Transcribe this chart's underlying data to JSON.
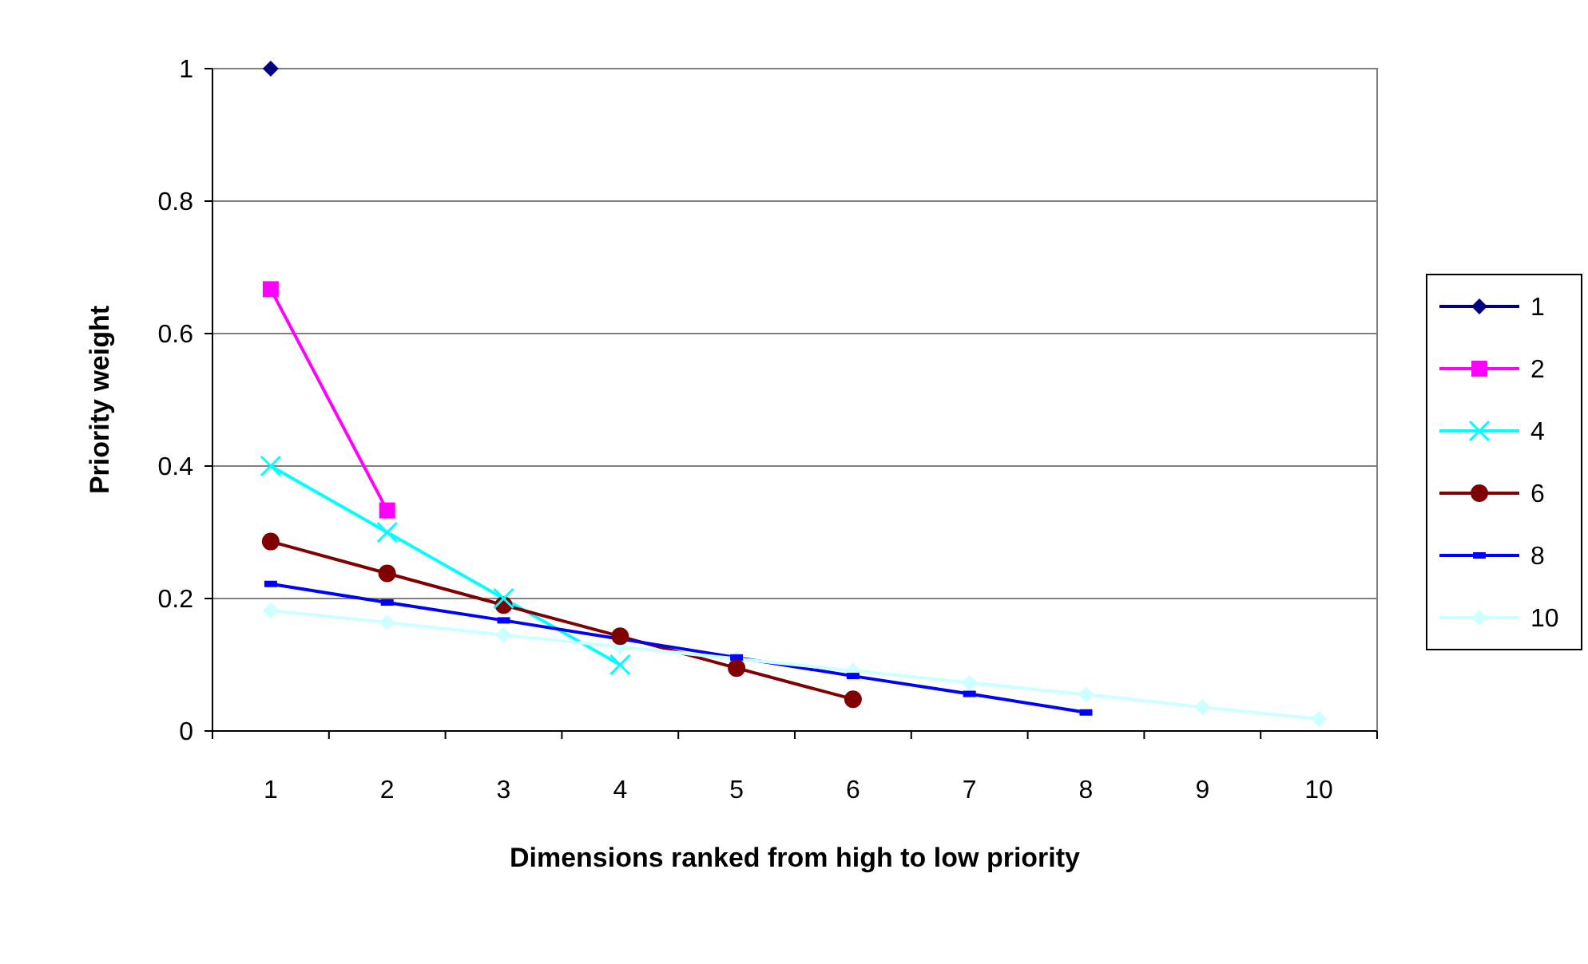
{
  "chart_data": {
    "type": "line",
    "xlabel": "Dimensions ranked from high to low priority",
    "ylabel": "Priority weight",
    "categories": [
      "1",
      "2",
      "3",
      "4",
      "5",
      "6",
      "7",
      "8",
      "9",
      "10"
    ],
    "ylim": [
      0,
      1
    ],
    "yticks": [
      0,
      0.2,
      0.4,
      0.6,
      0.8,
      1
    ],
    "grid": "y",
    "legend": "right",
    "series": [
      {
        "name": "1",
        "color": "#000080",
        "marker": "diamond",
        "values": [
          1,
          null,
          null,
          null,
          null,
          null,
          null,
          null,
          null,
          null
        ]
      },
      {
        "name": "2",
        "color": "#ff00ff",
        "marker": "square",
        "values": [
          0.667,
          0.333,
          null,
          null,
          null,
          null,
          null,
          null,
          null,
          null
        ]
      },
      {
        "name": "4",
        "color": "#00ffff",
        "marker": "cross",
        "values": [
          0.4,
          0.3,
          0.2,
          0.1,
          null,
          null,
          null,
          null,
          null,
          null
        ]
      },
      {
        "name": "6",
        "color": "#800000",
        "marker": "circle",
        "values": [
          0.286,
          0.238,
          0.19,
          0.143,
          0.095,
          0.048,
          null,
          null,
          null,
          null
        ]
      },
      {
        "name": "8",
        "color": "#0000ff",
        "marker": "square",
        "values": [
          0.222,
          0.194,
          0.167,
          0.139,
          0.111,
          0.083,
          0.056,
          0.028,
          null,
          null
        ]
      },
      {
        "name": "10",
        "color": "#ccffff",
        "marker": "diamond",
        "values": [
          0.182,
          0.164,
          0.145,
          0.127,
          0.109,
          0.091,
          0.073,
          0.055,
          0.036,
          0.018
        ]
      }
    ]
  }
}
